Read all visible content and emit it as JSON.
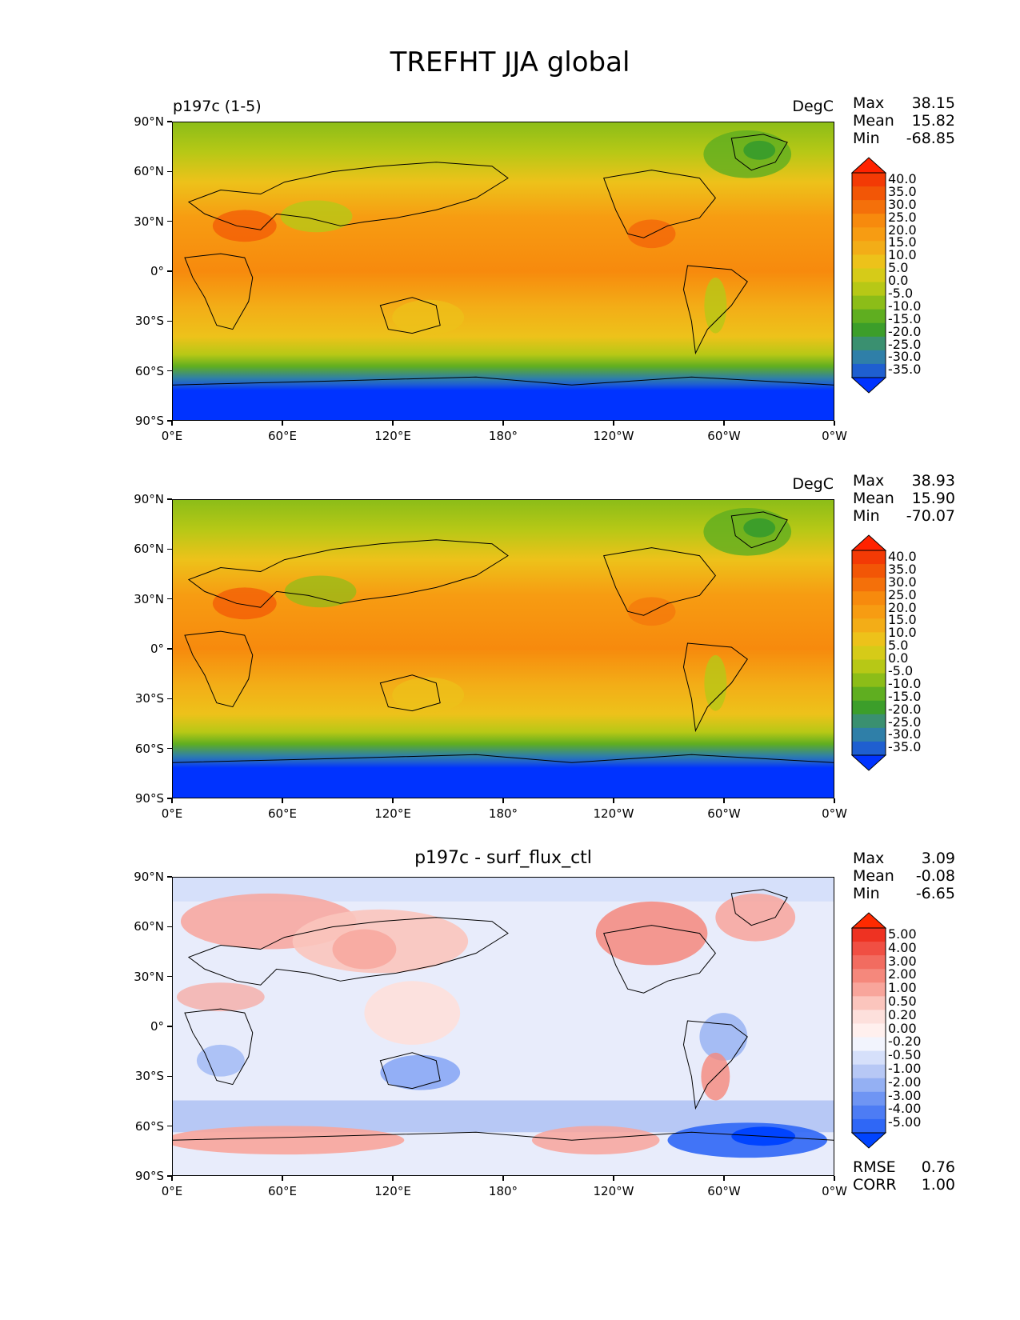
{
  "figure_title": "TREFHT JJA global",
  "x_ticks": [
    "0°E",
    "60°E",
    "120°E",
    "180°",
    "120°W",
    "60°W",
    "0°W"
  ],
  "y_ticks": [
    "90°N",
    "60°N",
    "30°N",
    "0°",
    "30°S",
    "60°S",
    "90°S"
  ],
  "panels": [
    {
      "left_title": "p197c (1-5)",
      "center_title": "",
      "units": "DegC",
      "stats": [
        {
          "key": "Max",
          "value": "38.15"
        },
        {
          "key": "Mean",
          "value": "15.82"
        },
        {
          "key": "Min",
          "value": "-68.85"
        }
      ],
      "colorbar_levels": [
        "40.0",
        "35.0",
        "30.0",
        "25.0",
        "20.0",
        "15.0",
        "10.0",
        "5.0",
        "0.0",
        "-5.0",
        "-10.0",
        "-15.0",
        "-20.0",
        "-25.0",
        "-30.0",
        "-35.0"
      ],
      "extra_stats": []
    },
    {
      "left_title": "",
      "center_title": "",
      "units": "DegC",
      "stats": [
        {
          "key": "Max",
          "value": "38.93"
        },
        {
          "key": "Mean",
          "value": "15.90"
        },
        {
          "key": "Min",
          "value": "-70.07"
        }
      ],
      "colorbar_levels": [
        "40.0",
        "35.0",
        "30.0",
        "25.0",
        "20.0",
        "15.0",
        "10.0",
        "5.0",
        "0.0",
        "-5.0",
        "-10.0",
        "-15.0",
        "-20.0",
        "-25.0",
        "-30.0",
        "-35.0"
      ],
      "extra_stats": []
    },
    {
      "left_title": "",
      "center_title": "p197c - surf_flux_ctl",
      "units": "",
      "stats": [
        {
          "key": "Max",
          "value": "3.09"
        },
        {
          "key": "Mean",
          "value": "-0.08"
        },
        {
          "key": "Min",
          "value": "-6.65"
        }
      ],
      "colorbar_levels": [
        "5.00",
        "4.00",
        "3.00",
        "2.00",
        "1.00",
        "0.50",
        "0.20",
        "0.00",
        "-0.20",
        "-0.50",
        "-1.00",
        "-2.00",
        "-3.00",
        "-4.00",
        "-5.00"
      ],
      "extra_stats": [
        {
          "key": "RMSE",
          "value": "0.76"
        },
        {
          "key": "CORR",
          "value": "1.00"
        }
      ]
    }
  ],
  "colors": {
    "temp_scale": [
      "#0033ff",
      "#1f5fd0",
      "#2f7fa8",
      "#3a9070",
      "#3c9e2a",
      "#5fae20",
      "#8cbd18",
      "#b7c816",
      "#d6cb18",
      "#edc21a",
      "#f3ad17",
      "#f79c12",
      "#f78a0d",
      "#f4700a",
      "#f25606",
      "#f33a05",
      "#ff2200"
    ],
    "diff_scale": [
      "#0044ff",
      "#2f67f6",
      "#4d7cf4",
      "#6f95f3",
      "#94b0f3",
      "#b7c8f5",
      "#d6e0fa",
      "#f2f4fd",
      "#fff0ee",
      "#fde0dc",
      "#fbc5bd",
      "#f8a59b",
      "#f5887c",
      "#f26c60",
      "#f04f43",
      "#ee3222",
      "#ff2a00"
    ]
  }
}
